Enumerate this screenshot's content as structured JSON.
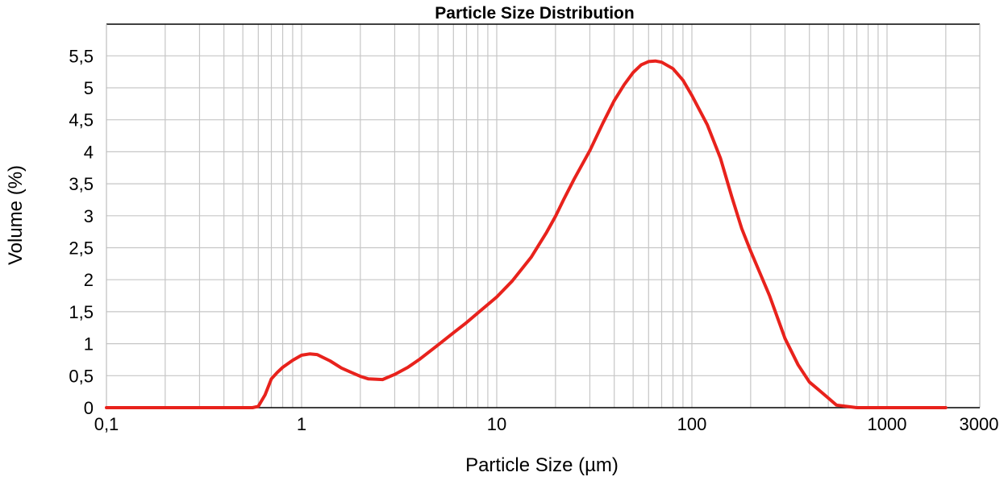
{
  "chart_data": {
    "type": "line",
    "title": "Particle Size Distribution",
    "xlabel": "Particle Size (µm)",
    "ylabel": "Volume (%)",
    "x_scale": "log",
    "xlim": [
      0.1,
      3000
    ],
    "ylim": [
      0,
      6
    ],
    "grid": true,
    "legend": "none",
    "x_ticks": [
      {
        "value": 0.1,
        "label": "0,1"
      },
      {
        "value": 1,
        "label": "1"
      },
      {
        "value": 10,
        "label": "10"
      },
      {
        "value": 100,
        "label": "100"
      },
      {
        "value": 1000,
        "label": "1000"
      },
      {
        "value": 3000,
        "label": "3000"
      }
    ],
    "y_ticks": [
      {
        "value": 0,
        "label": "0"
      },
      {
        "value": 0.5,
        "label": "0,5"
      },
      {
        "value": 1,
        "label": "1"
      },
      {
        "value": 1.5,
        "label": "1,5"
      },
      {
        "value": 2,
        "label": "2"
      },
      {
        "value": 2.5,
        "label": "2,5"
      },
      {
        "value": 3,
        "label": "3"
      },
      {
        "value": 3.5,
        "label": "3,5"
      },
      {
        "value": 4,
        "label": "4"
      },
      {
        "value": 4.5,
        "label": "4,5"
      },
      {
        "value": 5,
        "label": "5"
      },
      {
        "value": 5.5,
        "label": "5,5"
      }
    ],
    "series": [
      {
        "color": "#e8221c",
        "x": [
          0.1,
          0.56,
          0.6,
          0.65,
          0.7,
          0.75,
          0.8,
          0.9,
          1.0,
          1.1,
          1.2,
          1.4,
          1.6,
          1.8,
          2.0,
          2.2,
          2.6,
          3.0,
          3.5,
          4.0,
          5.0,
          6.0,
          7.0,
          8.0,
          10,
          12,
          15,
          18,
          20,
          22,
          25,
          30,
          35,
          40,
          45,
          50,
          55,
          60,
          65,
          70,
          80,
          90,
          100,
          120,
          140,
          160,
          180,
          200,
          250,
          300,
          350,
          400,
          450,
          500,
          550,
          700,
          1000,
          2000
        ],
        "y": [
          0,
          0,
          0.02,
          0.2,
          0.45,
          0.55,
          0.63,
          0.74,
          0.82,
          0.84,
          0.83,
          0.73,
          0.62,
          0.55,
          0.49,
          0.45,
          0.44,
          0.52,
          0.63,
          0.75,
          0.98,
          1.17,
          1.33,
          1.48,
          1.73,
          1.98,
          2.35,
          2.74,
          2.99,
          3.25,
          3.58,
          4.02,
          4.45,
          4.8,
          5.05,
          5.24,
          5.36,
          5.41,
          5.42,
          5.4,
          5.3,
          5.12,
          4.88,
          4.42,
          3.9,
          3.3,
          2.8,
          2.45,
          1.75,
          1.08,
          0.67,
          0.4,
          0.27,
          0.15,
          0.04,
          0,
          0,
          0
        ]
      }
    ]
  }
}
